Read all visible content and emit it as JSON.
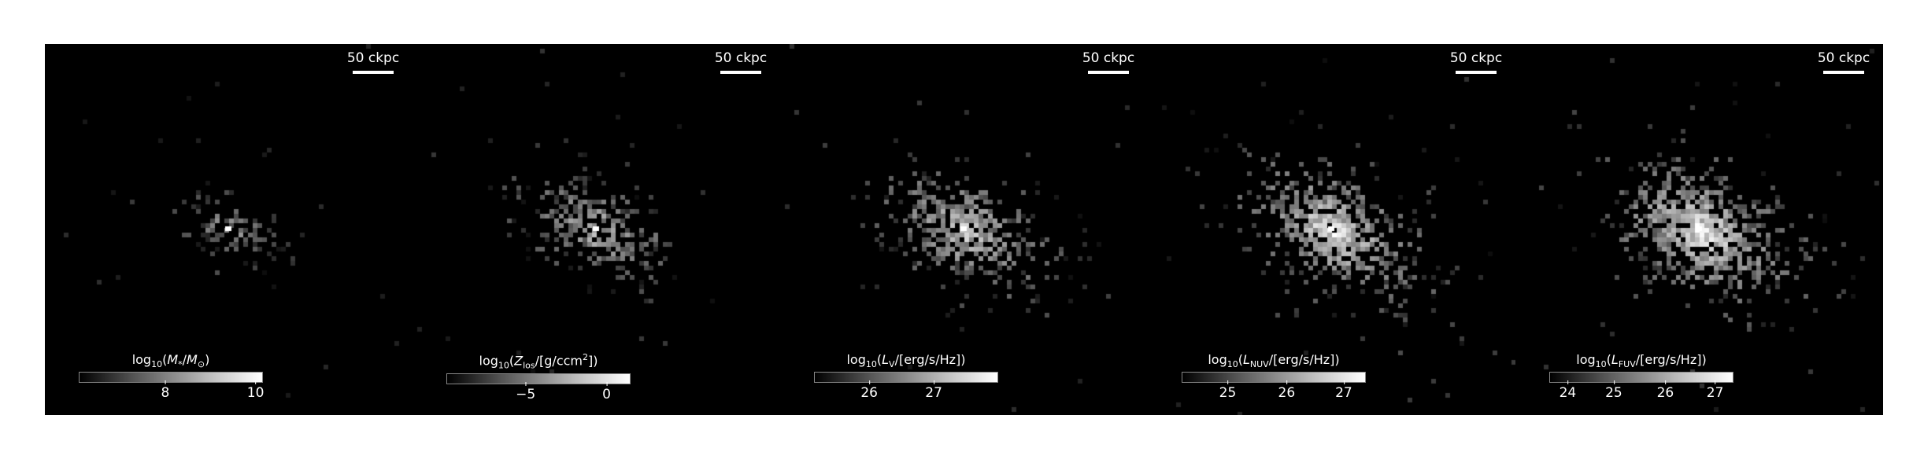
{
  "scale_bar_label": "50 ckpc",
  "panels": [
    {
      "colorbar_label_html": "log<sub>10</sub>(<i>M</i><sub>*</sub>/<i>M</i><sub>⊙</sub>)",
      "ticks": [
        {
          "label": "8",
          "frac": 0.47
        },
        {
          "label": "10",
          "frac": 0.96
        }
      ],
      "intensity": 0.55,
      "spread": 0.7
    },
    {
      "colorbar_label_html": "log<sub>10</sub>(<i>Z</i><sub>los</sub>/[g/ccm<sup>2</sup>])",
      "ticks": [
        {
          "label": "−5",
          "frac": 0.43
        },
        {
          "label": "0",
          "frac": 0.87
        }
      ],
      "intensity": 0.7,
      "spread": 1.0
    },
    {
      "colorbar_label_html": "log<sub>10</sub>(<i>L</i><sub>V</sub>/[erg/s/Hz])",
      "ticks": [
        {
          "label": "26",
          "frac": 0.3
        },
        {
          "label": "27",
          "frac": 0.65
        }
      ],
      "intensity": 0.8,
      "spread": 1.05
    },
    {
      "colorbar_label_html": "log<sub>10</sub>(<i>L</i><sub>NUV</sub>/[erg/s/Hz])",
      "ticks": [
        {
          "label": "25",
          "frac": 0.25
        },
        {
          "label": "26",
          "frac": 0.57
        },
        {
          "label": "27",
          "frac": 0.88
        }
      ],
      "intensity": 0.9,
      "spread": 1.15
    },
    {
      "colorbar_label_html": "log<sub>10</sub>(<i>L</i><sub>FUV</sub>/[erg/s/Hz])",
      "ticks": [
        {
          "label": "24",
          "frac": 0.1
        },
        {
          "label": "25",
          "frac": 0.35
        },
        {
          "label": "26",
          "frac": 0.63
        },
        {
          "label": "27",
          "frac": 0.9
        }
      ],
      "intensity": 0.92,
      "spread": 1.2
    }
  ]
}
